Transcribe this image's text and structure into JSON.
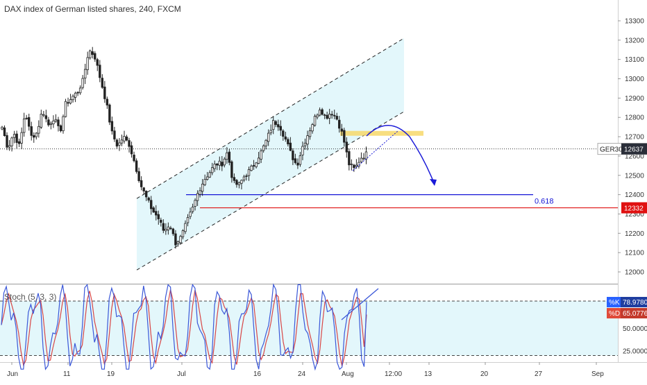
{
  "header": {
    "title": "DAX index of German listed shares, 240, FXCM"
  },
  "stoch": {
    "title": "Stoch (5, 3, 3)",
    "k_label": "%K",
    "k_value": "78.9780",
    "d_label": "%D",
    "d_value": "65.0776",
    "ticks": [
      "50.0000",
      "25.0000"
    ]
  },
  "price_axis": {
    "ticks": [
      "13300",
      "13200",
      "13100",
      "13000",
      "12900",
      "12800",
      "12700",
      "12600",
      "12500",
      "12400",
      "12300",
      "12200",
      "12100",
      "12000"
    ]
  },
  "time_axis": {
    "ticks": [
      "Jun",
      "11",
      "19",
      "Jul",
      "16",
      "24",
      "Aug",
      "12:00",
      "13",
      "20",
      "27",
      "Sep"
    ]
  },
  "annotations": {
    "fib_label": "0.618",
    "symbol_tag": "GER30",
    "symbol_price": "12637",
    "support_price": "12332"
  },
  "colors": {
    "up": "#222222",
    "down": "#222222",
    "channel_fill": "#e3f7fb",
    "fib_line": "#1414d6",
    "support_line": "#e01010",
    "resistance_box": "#f7d86a",
    "arrow": "#1a1ad8",
    "stoch_k": "#3a57d8",
    "stoch_d": "#d84545",
    "stoch_band": "#e3f7fb"
  },
  "chart_data": [
    {
      "type": "candlestick",
      "title": "DAX index of German listed shares, 240, FXCM",
      "ylim": [
        11950,
        13320
      ],
      "x": [
        "Jun",
        "11",
        "19",
        "Jul",
        "16",
        "24",
        "Aug",
        "12:00",
        "13",
        "20",
        "27",
        "Sep"
      ],
      "close_path": [
        12750,
        12640,
        12720,
        12650,
        12830,
        12700,
        12720,
        12840,
        12760,
        12800,
        12720,
        12870,
        12900,
        12930,
        12990,
        13150,
        13120,
        13000,
        12880,
        12720,
        12650,
        12700,
        12660,
        12560,
        12450,
        12380,
        12320,
        12280,
        12210,
        12250,
        12150,
        12180,
        12260,
        12330,
        12420,
        12480,
        12520,
        12560,
        12560,
        12620,
        12460,
        12450,
        12500,
        12530,
        12580,
        12630,
        12700,
        12780,
        12760,
        12690,
        12610,
        12550,
        12650,
        12720,
        12790,
        12850,
        12800,
        12830,
        12790,
        12700,
        12560,
        12530,
        12590,
        12610
      ],
      "current_price": 12637,
      "support_price": 12332,
      "fib_0618_price": 12400,
      "resistance_zone": [
        12705,
        12730
      ],
      "channel": {
        "upper": [
          [
            0,
            12380
          ],
          [
            62,
            13210
          ]
        ],
        "lower": [
          [
            0,
            12010
          ],
          [
            62,
            12830
          ]
        ]
      }
    },
    {
      "type": "line",
      "title": "Stoch (5, 3, 3)",
      "ylim": [
        0,
        100
      ],
      "levels": [
        80,
        20
      ],
      "series": [
        {
          "name": "%K",
          "last": 78.978
        },
        {
          "name": "%D",
          "last": 65.0776
        }
      ]
    }
  ]
}
